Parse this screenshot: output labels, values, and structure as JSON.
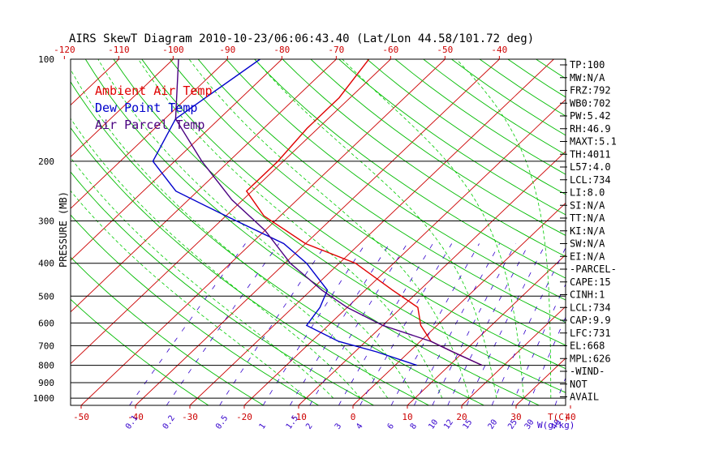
{
  "chart_data": {
    "type": "line",
    "title": "AIRS SkewT Diagram 2010-10-23/06:06:43.40 (Lat/Lon 44.58/101.72 deg)",
    "ylabel": "PRESSURE (MB)",
    "top_axis_ticks": [
      "-120",
      "-110",
      "-100",
      "-90",
      "-80",
      "-70",
      "-60",
      "-50",
      "-40"
    ],
    "bottom_temp_ticks": [
      "-50",
      "-40",
      "-30",
      "-20",
      "-10",
      "0",
      "10",
      "20",
      "30",
      "40"
    ],
    "bottom_temp_unit": "T(C)",
    "mixing_ratio_ticks": [
      "0.1",
      "0.2",
      "0.5",
      "1",
      "1.5",
      "2",
      "3",
      "4",
      "6",
      "8",
      "10",
      "12",
      "15",
      "20",
      "25",
      "30",
      "40"
    ],
    "mixing_ratio_unit": "W(g/kg)",
    "pressure_ticks": [
      "100",
      "200",
      "300",
      "400",
      "500",
      "600",
      "700",
      "800",
      "900",
      "1000"
    ],
    "legend": [
      {
        "label": "Ambient Air Temp",
        "color": "#e00000"
      },
      {
        "label": "Dew Point Temp",
        "color": "#0000cc"
      },
      {
        "label": "Air Parcel Temp",
        "color": "#4a0080"
      }
    ],
    "colors": {
      "isotherm": "#cc0000",
      "dry_adiabat": "#00bb00",
      "moist_adiabat": "#00cc00",
      "mixing_ratio": "#3300cc",
      "isobar": "#000000"
    },
    "series": [
      {
        "name": "Ambient Air Temp",
        "points": [
          [
            100,
            -64
          ],
          [
            130,
            -62
          ],
          [
            160,
            -62
          ],
          [
            200,
            -61
          ],
          [
            245,
            -61
          ],
          [
            290,
            -53
          ],
          [
            350,
            -40
          ],
          [
            400,
            -27
          ],
          [
            480,
            -15
          ],
          [
            540,
            -7
          ],
          [
            610,
            -3
          ],
          [
            680,
            2
          ],
          [
            730,
            8
          ],
          [
            800,
            16
          ]
        ]
      },
      {
        "name": "Dew Point Temp",
        "points": [
          [
            100,
            -84
          ],
          [
            150,
            -88
          ],
          [
            200,
            -84
          ],
          [
            245,
            -74
          ],
          [
            290,
            -60
          ],
          [
            350,
            -44
          ],
          [
            400,
            -36
          ],
          [
            480,
            -27
          ],
          [
            540,
            -25
          ],
          [
            610,
            -24
          ],
          [
            680,
            -15
          ],
          [
            730,
            -6
          ],
          [
            800,
            4
          ]
        ]
      },
      {
        "name": "Air Parcel Temp",
        "points": [
          [
            100,
            -99
          ],
          [
            150,
            -88
          ],
          [
            200,
            -75
          ],
          [
            260,
            -62
          ],
          [
            320,
            -50
          ],
          [
            400,
            -39
          ],
          [
            480,
            -28
          ],
          [
            540,
            -20
          ],
          [
            610,
            -10
          ],
          [
            680,
            2
          ],
          [
            730,
            8
          ],
          [
            800,
            16
          ]
        ]
      }
    ],
    "indices": [
      "TP:100",
      "MW:N/A",
      "FRZ:792",
      "WB0:702",
      "PW:5.42",
      "RH:46.9",
      "MAXT:5.1",
      "TH:4011",
      "L57:4.0",
      "LCL:734",
      "LI:8.0",
      "SI:N/A",
      "TT:N/A",
      "KI:N/A",
      "SW:N/A",
      "EI:N/A",
      "-PARCEL-",
      "CAPE:15",
      "CINH:1",
      "LCL:734",
      "CAP:9.9",
      "LFC:731",
      "EL:668",
      "MPL:626",
      "-WIND-",
      "NOT",
      "AVAIL"
    ]
  }
}
